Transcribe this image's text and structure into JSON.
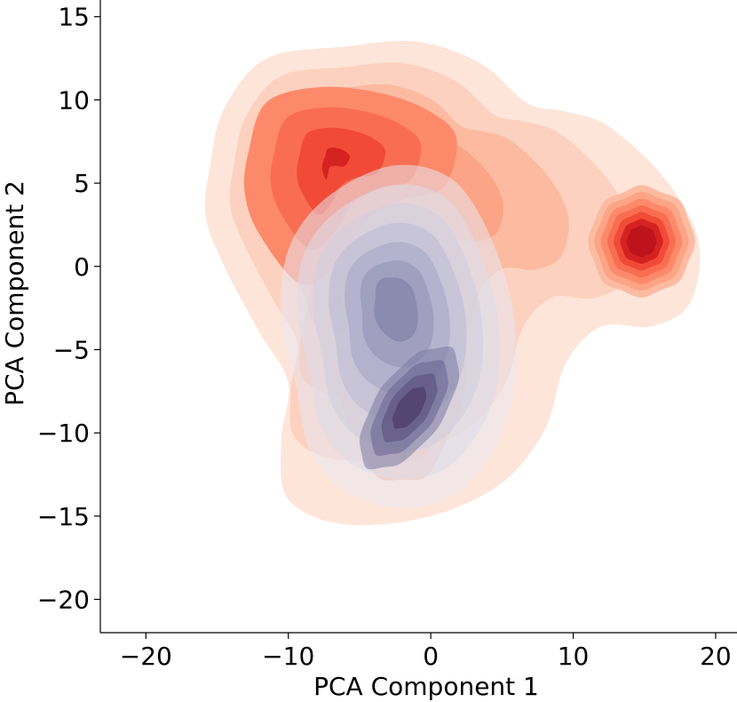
{
  "chart_data": {
    "type": "kde-contour",
    "title": "",
    "xlabel": "PCA Component 1",
    "ylabel": "PCA Component 2",
    "xlim": [
      -23.2,
      21.5
    ],
    "ylim": [
      -22,
      16
    ],
    "x_ticks": [
      -20,
      -10,
      0,
      10,
      20
    ],
    "x_tick_labels": [
      "−20",
      "−10",
      "0",
      "10",
      "20"
    ],
    "y_ticks": [
      -20,
      -15,
      -10,
      -5,
      0,
      5,
      10,
      15
    ],
    "y_tick_labels": [
      "−20",
      "−15",
      "−10",
      "−5",
      "0",
      "5",
      "10",
      "15"
    ],
    "grid": false,
    "legend": "none",
    "spines": [
      "left",
      "bottom"
    ],
    "series": [
      {
        "colormap": "Reds",
        "kind": "filled-kde",
        "levels": 10,
        "colors": [
          "#fee5d9",
          "#fdd1bf",
          "#fcbba1",
          "#fca486",
          "#fc8a6a",
          "#f96e52",
          "#f14b37",
          "#d52221",
          "#bc141a"
        ],
        "modes": [
          {
            "x": -7,
            "y": 6.5
          },
          {
            "x": 14.8,
            "y": 1.5
          },
          {
            "x": -2,
            "y": -6
          }
        ],
        "extent": {
          "x": [
            -16,
            19
          ],
          "y": [
            -15.5,
            13.5
          ]
        }
      },
      {
        "colormap": "light-to-dark purple",
        "kind": "filled-kde",
        "levels": 10,
        "colors": [
          "#e8e8f2",
          "#dcdce9",
          "#cdcddf",
          "#babad3",
          "#a4a4c5",
          "#8f8fb4",
          "#7a7aa2",
          "#67628f",
          "#55497a",
          "#44305f"
        ],
        "modes": [
          {
            "x": -2.5,
            "y": -1.5
          },
          {
            "x": -1.5,
            "y": -8.5
          }
        ],
        "extent": {
          "x": [
            -10.5,
            6
          ],
          "y": [
            -14.5,
            6
          ]
        }
      }
    ]
  }
}
